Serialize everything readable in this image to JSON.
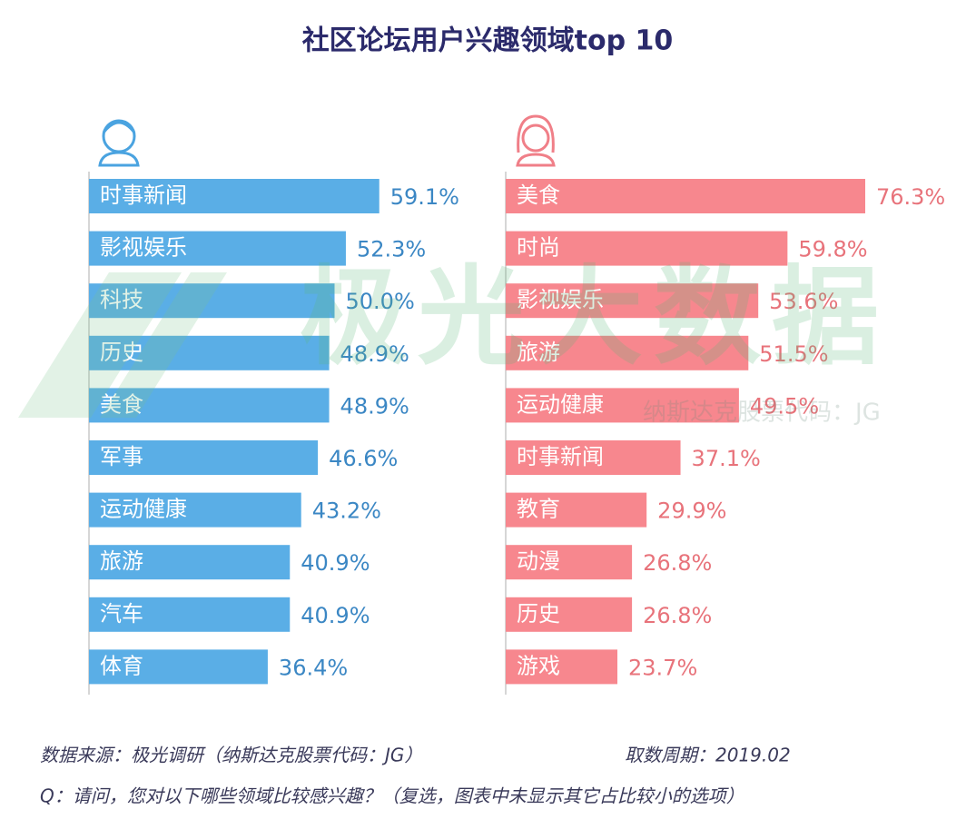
{
  "title": "社区论坛用户兴趣领域top 10",
  "chart_data": [
    {
      "type": "bar",
      "orientation": "horizontal",
      "series_icon": "male",
      "categories": [
        "时事新闻",
        "影视娱乐",
        "科技",
        "历史",
        "美食",
        "军事",
        "运动健康",
        "旅游",
        "汽车",
        "体育"
      ],
      "values": [
        59.1,
        52.3,
        50.0,
        48.9,
        48.9,
        46.6,
        43.2,
        40.9,
        40.9,
        36.4
      ],
      "value_labels": [
        "59.1%",
        "52.3%",
        "50.0%",
        "48.9%",
        "48.9%",
        "46.6%",
        "43.2%",
        "40.9%",
        "40.9%",
        "36.4%"
      ],
      "color": "#5aaee6",
      "label_color": "#3b87c4",
      "xlim": [
        0,
        100
      ]
    },
    {
      "type": "bar",
      "orientation": "horizontal",
      "series_icon": "female",
      "categories": [
        "美食",
        "时尚",
        "影视娱乐",
        "旅游",
        "运动健康",
        "时事新闻",
        "教育",
        "动漫",
        "历史",
        "游戏"
      ],
      "values": [
        76.3,
        59.8,
        53.6,
        51.5,
        49.5,
        37.1,
        29.9,
        26.8,
        26.8,
        23.7
      ],
      "value_labels": [
        "76.3%",
        "59.8%",
        "53.6%",
        "51.5%",
        "49.5%",
        "37.1%",
        "29.9%",
        "26.8%",
        "26.8%",
        "23.7%"
      ],
      "color": "#f7878e",
      "label_color": "#e8737b",
      "xlim": [
        0,
        100
      ]
    }
  ],
  "watermark": {
    "brand": "极光大数据",
    "code": "纳斯达克股票代码：JG"
  },
  "footer": {
    "source": "数据来源：极光调研（纳斯达克股票代码：JG）",
    "period": "取数周期：2019.02",
    "question": "Q：请问，您对以下哪些领域比较感兴趣？（复选，图表中未显示其它占比较小的选项）"
  }
}
